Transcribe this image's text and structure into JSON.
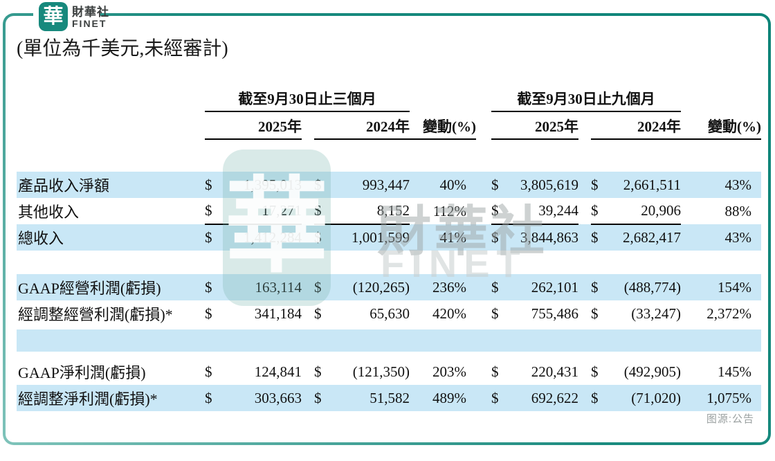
{
  "brand": {
    "logo_char": "華",
    "name_cn": "財華社",
    "name_en": "FINET"
  },
  "title": "(單位為千美元,未經審計)",
  "currency_symbol": "$",
  "table": {
    "group_headers": [
      {
        "title": "截至9月30日止三個月",
        "col_2025": "2025年",
        "col_2024": "2024年",
        "col_change": "變動(%)"
      },
      {
        "title": "截至9月30日止九個月",
        "col_2025": "2025年",
        "col_2024": "2024年",
        "col_change": "變動(%)"
      }
    ],
    "rows": [
      {
        "label": "產品收入淨額",
        "cells": [
          "1,395,013",
          "993,447",
          "40%",
          "3,805,619",
          "2,661,511",
          "43%"
        ]
      },
      {
        "label": "其他收入",
        "cells": [
          "17,271",
          "8,152",
          "112%",
          "39,244",
          "20,906",
          "88%"
        ]
      },
      {
        "label": "總收入",
        "cells": [
          "1,412,284",
          "1,001,599",
          "41%",
          "3,844,863",
          "2,682,417",
          "43%"
        ]
      },
      {
        "label": "GAAP經營利潤(虧損)",
        "cells": [
          "163,114",
          "(120,265)",
          "236%",
          "262,101",
          "(488,774)",
          "154%"
        ]
      },
      {
        "label": "經調整經營利潤(虧損)*",
        "cells": [
          "341,184",
          "65,630",
          "420%",
          "755,486",
          "(33,247)",
          "2,372%"
        ]
      },
      {
        "label": "GAAP淨利潤(虧損)",
        "cells": [
          "124,841",
          "(121,350)",
          "203%",
          "220,431",
          "(492,905)",
          "145%"
        ]
      },
      {
        "label": "經調整淨利潤(虧損)*",
        "cells": [
          "303,663",
          "51,582",
          "489%",
          "692,622",
          "(71,020)",
          "1,075%"
        ]
      }
    ]
  },
  "watermark": {
    "logo_char": "華",
    "text_cn": "財華社",
    "text_en": "FINET"
  },
  "caption": "图源:公告",
  "colors": {
    "accent_teal": "#17897d",
    "row_blue": "#c9e7f6",
    "caption_gray": "#9aa0a0",
    "text_black": "#111111"
  }
}
